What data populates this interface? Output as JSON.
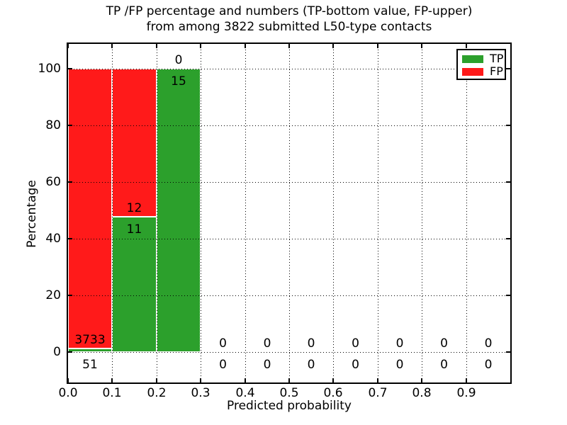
{
  "title": {
    "line1": "TP /FP percentage and numbers (TP-bottom value, FP-upper)",
    "line2": "from among 3822 submitted L50-type contacts"
  },
  "chart_data": {
    "type": "bar",
    "subtype": "stacked-percentage",
    "title": "TP /FP percentage and numbers (TP-bottom value, FP-upper) from among 3822 submitted L50-type contacts",
    "xlabel": "Predicted probability",
    "ylabel": "Percentage",
    "xlim": [
      0.0,
      1.0
    ],
    "ylim": [
      -11,
      109
    ],
    "xticks": [
      "0.0",
      "0.1",
      "0.2",
      "0.3",
      "0.4",
      "0.5",
      "0.6",
      "0.7",
      "0.8",
      "0.9"
    ],
    "yticks": [
      0,
      20,
      40,
      60,
      80,
      100
    ],
    "grid": "dotted",
    "total_contacts": 3822,
    "legend": {
      "position": "upper right",
      "entries": [
        {
          "label": "TP",
          "color": "#2CA02C"
        },
        {
          "label": "FP",
          "color": "#FF1A1A"
        }
      ]
    },
    "series": [
      {
        "name": "TP",
        "values": [
          51,
          11,
          15,
          0,
          0,
          0,
          0,
          0,
          0,
          0
        ]
      },
      {
        "name": "FP",
        "values": [
          3733,
          12,
          0,
          0,
          0,
          0,
          0,
          0,
          0,
          0
        ]
      }
    ],
    "bins": [
      {
        "x_start": 0.0,
        "x_end": 0.1,
        "tp": 51,
        "fp": 3733,
        "tp_pct": 1.35,
        "fp_pct": 98.65,
        "has_bar": true
      },
      {
        "x_start": 0.1,
        "x_end": 0.2,
        "tp": 11,
        "fp": 12,
        "tp_pct": 47.83,
        "fp_pct": 52.17,
        "has_bar": true
      },
      {
        "x_start": 0.2,
        "x_end": 0.3,
        "tp": 15,
        "fp": 0,
        "tp_pct": 100,
        "fp_pct": 0,
        "has_bar": true
      },
      {
        "x_start": 0.3,
        "x_end": 0.4,
        "tp": 0,
        "fp": 0,
        "tp_pct": 0,
        "fp_pct": 0,
        "has_bar": false
      },
      {
        "x_start": 0.4,
        "x_end": 0.5,
        "tp": 0,
        "fp": 0,
        "tp_pct": 0,
        "fp_pct": 0,
        "has_bar": false
      },
      {
        "x_start": 0.5,
        "x_end": 0.6,
        "tp": 0,
        "fp": 0,
        "tp_pct": 0,
        "fp_pct": 0,
        "has_bar": false
      },
      {
        "x_start": 0.6,
        "x_end": 0.7,
        "tp": 0,
        "fp": 0,
        "tp_pct": 0,
        "fp_pct": 0,
        "has_bar": false
      },
      {
        "x_start": 0.7,
        "x_end": 0.8,
        "tp": 0,
        "fp": 0,
        "tp_pct": 0,
        "fp_pct": 0,
        "has_bar": false
      },
      {
        "x_start": 0.8,
        "x_end": 0.9,
        "tp": 0,
        "fp": 0,
        "tp_pct": 0,
        "fp_pct": 0,
        "has_bar": false
      },
      {
        "x_start": 0.9,
        "x_end": 1.0,
        "tp": 0,
        "fp": 0,
        "tp_pct": 0,
        "fp_pct": 0,
        "has_bar": false
      }
    ]
  },
  "colors": {
    "tp": "#2CA02C",
    "fp": "#FF1A1A",
    "grid": "#000000",
    "spine": "#000000",
    "background": "#FFFFFF",
    "text": "#000000"
  }
}
